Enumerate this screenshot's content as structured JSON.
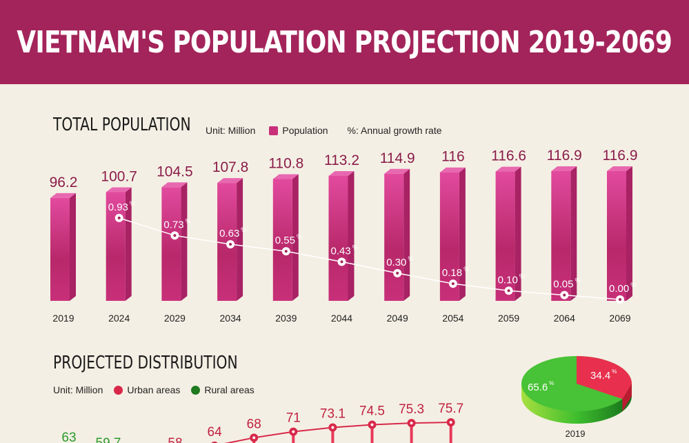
{
  "title": "VIETNAM'S POPULATION PROJECTION 2019-2069",
  "chart_data": [
    {
      "type": "bar",
      "title": "TOTAL POPULATION",
      "unit": "Unit: Million",
      "legend": [
        "Population",
        "%: Annual growth rate"
      ],
      "categories": [
        "2019",
        "2024",
        "2029",
        "2034",
        "2039",
        "2044",
        "2049",
        "2054",
        "2059",
        "2064",
        "2069"
      ],
      "series": [
        {
          "name": "Population",
          "values": [
            96.2,
            100.7,
            104.5,
            107.8,
            110.8,
            113.2,
            114.9,
            116,
            116.6,
            116.9,
            116.9
          ],
          "color": "#c8307a"
        },
        {
          "name": "%: Annual growth rate",
          "type": "line",
          "values": [
            null,
            0.93,
            0.73,
            0.63,
            0.55,
            0.43,
            0.3,
            0.18,
            0.1,
            0.05,
            0.0
          ],
          "labels": [
            "",
            "0.93",
            "0.73",
            "0.63",
            "0.55",
            "0.43",
            "0.30",
            "0.18",
            "0.10",
            "0.05",
            "0.00"
          ],
          "color": "#ffffff"
        }
      ]
    },
    {
      "type": "line",
      "title": "PROJECTED DISTRIBUTION",
      "unit": "Unit: Million",
      "legend": [
        "Urban areas",
        "Rural areas"
      ],
      "series": [
        {
          "name": "Urban areas",
          "color": "#d8284a",
          "labels": [
            "58",
            "64",
            "68",
            "71",
            "73.1",
            "74.5",
            "75.3",
            "75.7"
          ],
          "values": [
            58,
            64,
            68,
            71,
            73.1,
            74.5,
            75.3,
            75.7
          ]
        },
        {
          "name": "Rural areas",
          "color": "#2a9a2a",
          "labels": [
            "63",
            "59.7"
          ],
          "values": [
            63,
            59.7
          ]
        }
      ]
    },
    {
      "type": "pie",
      "label": "2019",
      "slices": [
        {
          "name": "Urban areas",
          "value": 34.4,
          "label": "34.4",
          "color": "#e8304e"
        },
        {
          "name": "Rural areas",
          "value": 65.6,
          "label": "65.6",
          "color": "#4cc43a"
        }
      ]
    }
  ]
}
